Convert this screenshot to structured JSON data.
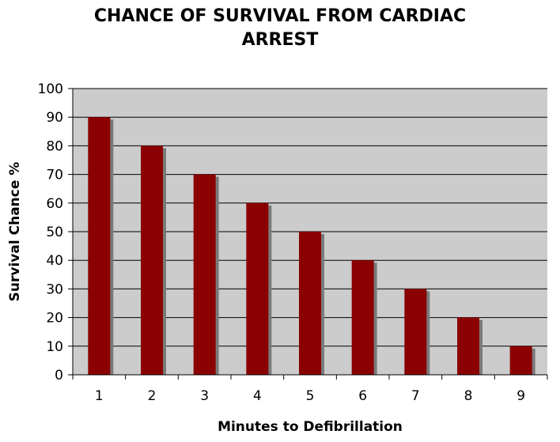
{
  "chart_data": {
    "type": "bar",
    "title_lines": [
      "CHANCE OF SURVIVAL FROM CARDIAC",
      "ARREST"
    ],
    "xlabel": "Minutes to Defibrillation",
    "ylabel": "Survival Chance %",
    "categories": [
      "1",
      "2",
      "3",
      "4",
      "5",
      "6",
      "7",
      "8",
      "9"
    ],
    "values": [
      90,
      80,
      70,
      60,
      50,
      40,
      30,
      20,
      10
    ],
    "ylim": [
      0,
      100
    ],
    "yticks": [
      "0",
      "10",
      "20",
      "30",
      "40",
      "50",
      "60",
      "70",
      "80",
      "90",
      "100"
    ],
    "grid": true,
    "legend": "none",
    "colors": {
      "bar": "#8b0000",
      "bar_shadow": "#7a7a7a",
      "plot_background": "#cccccc",
      "gridline": "#000000"
    }
  }
}
